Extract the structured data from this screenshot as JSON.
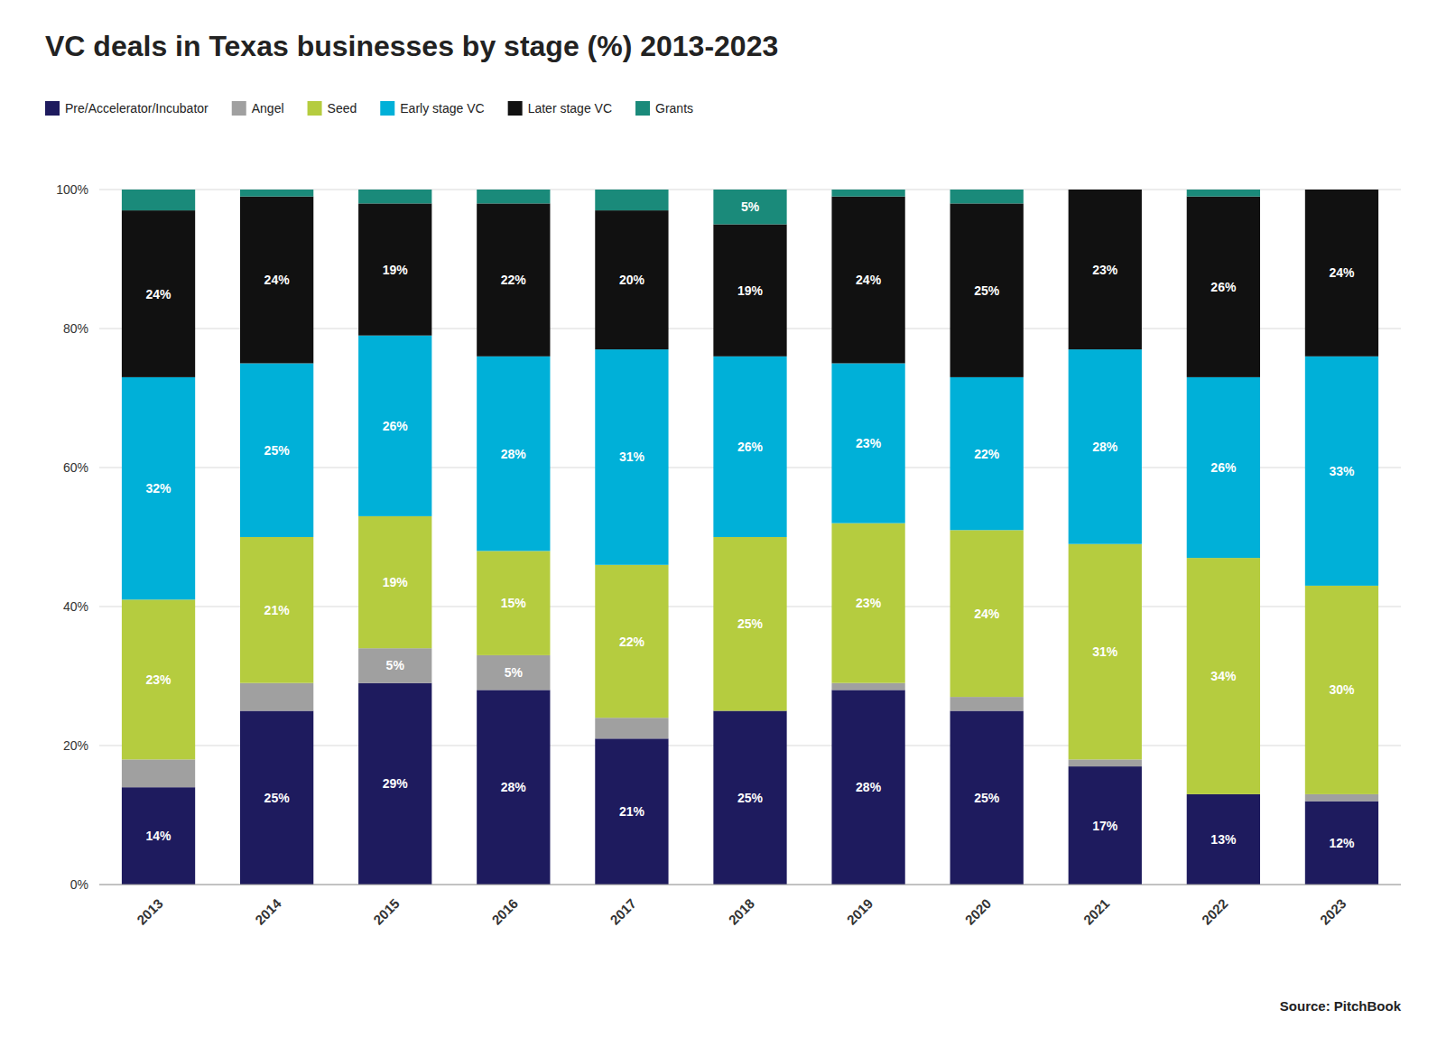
{
  "chart_data": {
    "type": "bar",
    "stacked": true,
    "title": "VC deals in Texas businesses by stage (%) 2013-2023",
    "source": "Source: PitchBook",
    "categories": [
      "2013",
      "2014",
      "2015",
      "2016",
      "2017",
      "2018",
      "2019",
      "2020",
      "2021",
      "2022",
      "2023"
    ],
    "series": [
      {
        "name": "Pre/Accelerator/Incubator",
        "color": "#1e1b5e",
        "values": [
          14,
          25,
          29,
          28,
          21,
          25,
          28,
          25,
          17,
          13,
          12
        ],
        "value_labels": [
          "14%",
          "25%",
          "29%",
          "28%",
          "21%",
          "25%",
          "28%",
          "25%",
          "17%",
          "13%",
          "12%"
        ]
      },
      {
        "name": "Angel",
        "color": "#a0a0a0",
        "values": [
          4,
          4,
          5,
          5,
          3,
          0,
          1,
          2,
          1,
          0,
          1
        ],
        "value_labels": [
          null,
          null,
          "5%",
          "5%",
          null,
          null,
          null,
          null,
          null,
          null,
          null
        ]
      },
      {
        "name": "Seed",
        "color": "#b5cc3f",
        "values": [
          23,
          21,
          19,
          15,
          22,
          25,
          23,
          24,
          31,
          34,
          30
        ],
        "value_labels": [
          "23%",
          "21%",
          "19%",
          "15%",
          "22%",
          "25%",
          "23%",
          "24%",
          "31%",
          "34%",
          "30%"
        ]
      },
      {
        "name": "Early stage VC",
        "color": "#00b0d8",
        "values": [
          32,
          25,
          26,
          28,
          31,
          26,
          23,
          22,
          28,
          26,
          33
        ],
        "value_labels": [
          "32%",
          "25%",
          "26%",
          "28%",
          "31%",
          "26%",
          "23%",
          "22%",
          "28%",
          "26%",
          "33%"
        ]
      },
      {
        "name": "Later stage VC",
        "color": "#111111",
        "values": [
          24,
          24,
          19,
          22,
          20,
          19,
          24,
          25,
          23,
          26,
          24
        ],
        "value_labels": [
          "24%",
          "24%",
          "19%",
          "22%",
          "20%",
          "19%",
          "24%",
          "25%",
          "23%",
          "26%",
          "24%"
        ]
      },
      {
        "name": "Grants",
        "color": "#1a8a7a",
        "values": [
          3,
          1,
          2,
          2,
          3,
          5,
          1,
          2,
          0,
          1,
          0
        ],
        "value_labels": [
          null,
          null,
          null,
          null,
          null,
          "5%",
          null,
          null,
          null,
          null,
          null
        ]
      }
    ],
    "ylim": [
      0,
      100
    ],
    "yticks": [
      {
        "value": 0,
        "label": "0%"
      },
      {
        "value": 20,
        "label": "20%"
      },
      {
        "value": 40,
        "label": "40%"
      },
      {
        "value": 60,
        "label": "60%"
      },
      {
        "value": 80,
        "label": "80%"
      },
      {
        "value": 100,
        "label": "100%"
      }
    ],
    "grid": true,
    "legend": "top",
    "data_labels": true
  }
}
